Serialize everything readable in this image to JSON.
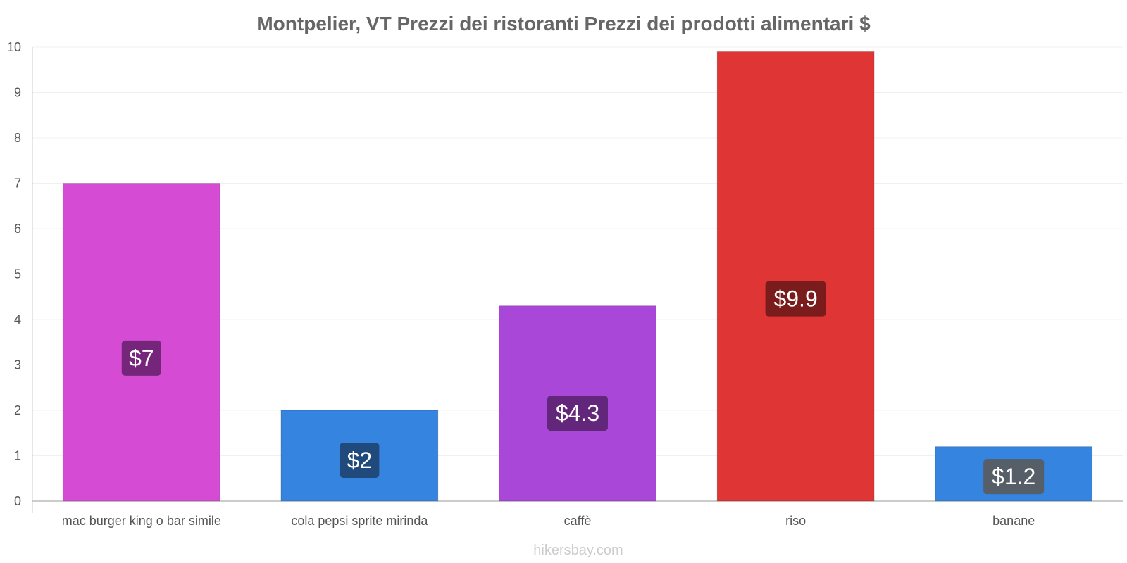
{
  "chart_data": {
    "type": "bar",
    "title": "Montpelier, VT Prezzi dei ristoranti Prezzi dei prodotti alimentari $",
    "xlabel": "",
    "ylabel": "",
    "ylim": [
      0,
      10
    ],
    "yticks": [
      0,
      1,
      2,
      3,
      4,
      5,
      6,
      7,
      8,
      9,
      10
    ],
    "grid": true,
    "categories": [
      "mac burger king o bar simile",
      "cola pepsi sprite mirinda",
      "caffè",
      "riso",
      "banane"
    ],
    "values": [
      7,
      2,
      4.3,
      9.9,
      1.2
    ],
    "data_labels": [
      "$7",
      "$2",
      "$4.3",
      "$9.9",
      "$1.2"
    ],
    "colors": [
      "#d64bd3",
      "#3584e0",
      "#a847d8",
      "#e03535",
      "#3584e0"
    ],
    "label_bg_colors": [
      "#6b2270",
      "#1e4470",
      "#5a2470",
      "#701a1a",
      "#5a5a5a"
    ]
  },
  "watermark": "hikersbay.com"
}
